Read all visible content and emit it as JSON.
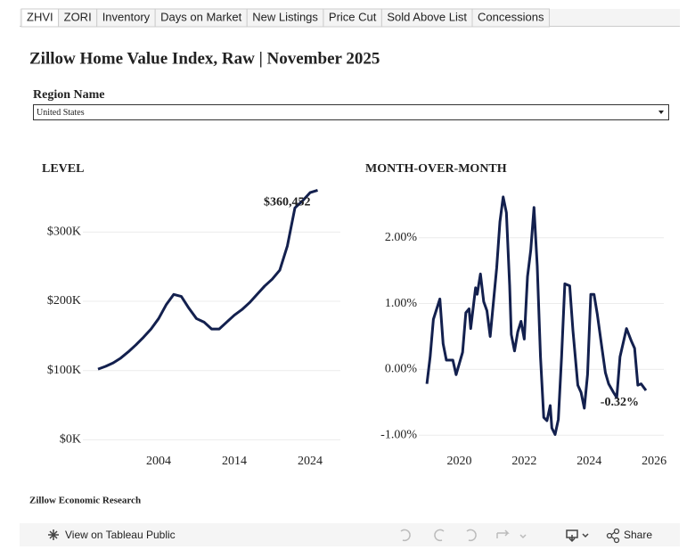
{
  "tabs": [
    "ZHVI",
    "ZORI",
    "Inventory",
    "Days on Market",
    "New Listings",
    "Price Cut",
    "Sold Above List",
    "Concessions"
  ],
  "title": "Zillow Home Value Index, Raw | November 2025",
  "filter": {
    "label": "Region Name",
    "value": "United States"
  },
  "footer": "Zillow Economic Research",
  "toolbar": {
    "view": "View on Tableau Public",
    "share": "Share"
  },
  "chart_data": [
    {
      "type": "line",
      "title": "LEVEL",
      "grid": true,
      "x": [
        1996,
        1997,
        1998,
        1999,
        2000,
        2001,
        2002,
        2003,
        2004,
        2005,
        2006,
        2007,
        2008,
        2009,
        2010,
        2011,
        2012,
        2013,
        2014,
        2015,
        2016,
        2017,
        2018,
        2019,
        2020,
        2021,
        2022,
        2023,
        2024,
        2025
      ],
      "series": [
        {
          "name": "ZHVI",
          "color": "#13204e",
          "values": [
            102000,
            106000,
            111000,
            118000,
            127000,
            137000,
            148000,
            160000,
            175000,
            195000,
            210000,
            207000,
            190000,
            175000,
            170000,
            160000,
            160000,
            170000,
            180000,
            188000,
            198000,
            210000,
            222000,
            232000,
            245000,
            280000,
            335000,
            345000,
            357000,
            360452
          ],
          "value_labels": [
            null,
            null,
            null,
            null,
            null,
            null,
            null,
            null,
            null,
            null,
            null,
            null,
            null,
            null,
            null,
            null,
            null,
            null,
            null,
            null,
            null,
            null,
            null,
            null,
            null,
            null,
            null,
            null,
            null,
            "$360,452"
          ]
        }
      ],
      "xlim": [
        1994,
        2028
      ],
      "xticks": [
        2004,
        2014,
        2024
      ],
      "ylim": [
        -15000,
        370000
      ],
      "yticks": [
        {
          "value": 0,
          "label": "$0K"
        },
        {
          "value": 100000,
          "label": "$100K"
        },
        {
          "value": 200000,
          "label": "$200K"
        },
        {
          "value": 300000,
          "label": "$300K"
        }
      ]
    },
    {
      "type": "line",
      "title": "MONTH-OVER-MONTH",
      "grid": true,
      "x": [
        2019.0,
        2019.1,
        2019.2,
        2019.4,
        2019.5,
        2019.6,
        2019.8,
        2019.9,
        2020.1,
        2020.2,
        2020.3,
        2020.35,
        2020.5,
        2020.55,
        2020.65,
        2020.75,
        2020.85,
        2020.95,
        2021.15,
        2021.25,
        2021.35,
        2021.45,
        2021.55,
        2021.6,
        2021.7,
        2021.8,
        2021.9,
        2022.0,
        2022.1,
        2022.2,
        2022.3,
        2022.4,
        2022.5,
        2022.6,
        2022.7,
        2022.8,
        2022.85,
        2022.95,
        2023.05,
        2023.15,
        2023.25,
        2023.4,
        2023.5,
        2023.65,
        2023.75,
        2023.85,
        2023.95,
        2024.05,
        2024.15,
        2024.25,
        2024.4,
        2024.5,
        2024.6,
        2024.75,
        2024.85,
        2024.95,
        2025.15,
        2025.3,
        2025.4,
        2025.5,
        2025.6,
        2025.75
      ],
      "series": [
        {
          "name": "Month-over-month",
          "color": "#13204e",
          "values": [
            -0.22,
            0.19,
            0.76,
            1.07,
            0.39,
            0.14,
            0.14,
            -0.08,
            0.26,
            0.86,
            0.92,
            0.62,
            1.24,
            1.14,
            1.45,
            1.03,
            0.89,
            0.5,
            1.54,
            2.24,
            2.62,
            2.38,
            1.27,
            0.53,
            0.28,
            0.57,
            0.73,
            0.46,
            1.41,
            1.81,
            2.46,
            1.57,
            0.19,
            -0.73,
            -0.78,
            -0.55,
            -0.89,
            -0.99,
            -0.76,
            0.19,
            1.3,
            1.27,
            0.59,
            -0.24,
            -0.35,
            -0.59,
            -0.08,
            1.14,
            1.14,
            0.84,
            0.3,
            -0.05,
            -0.22,
            -0.35,
            -0.43,
            0.19,
            0.62,
            0.43,
            0.32,
            -0.24,
            -0.22,
            -0.32
          ],
          "value_labels": [
            null,
            null,
            null,
            null,
            null,
            null,
            null,
            null,
            null,
            null,
            null,
            null,
            null,
            null,
            null,
            null,
            null,
            null,
            null,
            null,
            null,
            null,
            null,
            null,
            null,
            null,
            null,
            null,
            null,
            null,
            null,
            null,
            null,
            null,
            null,
            null,
            null,
            null,
            null,
            null,
            null,
            null,
            null,
            null,
            null,
            null,
            null,
            null,
            null,
            null,
            null,
            null,
            null,
            null,
            null,
            null,
            null,
            null,
            null,
            null,
            null,
            "-0.32%"
          ]
        }
      ],
      "xlim": [
        2018.75,
        2026.3
      ],
      "xticks": [
        2020,
        2022,
        2024,
        2026
      ],
      "ylim": [
        -1.2,
        2.7
      ],
      "yticks": [
        {
          "value": -1,
          "label": "-1.00%"
        },
        {
          "value": 0,
          "label": "0.00%"
        },
        {
          "value": 1,
          "label": "1.00%"
        },
        {
          "value": 2,
          "label": "2.00%"
        }
      ]
    }
  ]
}
